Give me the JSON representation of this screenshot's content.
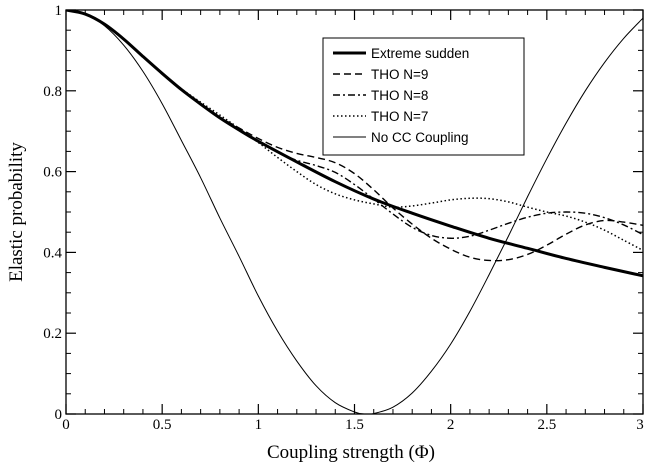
{
  "chart_data": {
    "type": "line",
    "xlabel": "Coupling strength (Φ)",
    "ylabel": "Elastic probability",
    "xlim": [
      0,
      3
    ],
    "ylim": [
      0,
      1
    ],
    "x_ticks": [
      0,
      0.5,
      1,
      1.5,
      2,
      2.5,
      3
    ],
    "x_tick_labels": [
      "0",
      "0.5",
      "1",
      "1.5",
      "2",
      "2.5",
      "3"
    ],
    "x_minor_step": 0.1,
    "y_ticks": [
      0,
      0.2,
      0.4,
      0.6,
      0.8,
      1
    ],
    "y_tick_labels": [
      "0",
      "0.2",
      "0.4",
      "0.6",
      "0.8",
      "1"
    ],
    "y_minor_step": 0.05,
    "grid": false,
    "legend_position": "top-right",
    "series": [
      {
        "name": "Extreme sudden",
        "style": "solid-thick",
        "color": "#000000",
        "x": [
          0,
          0.1,
          0.2,
          0.3,
          0.4,
          0.5,
          0.6,
          0.7,
          0.8,
          0.9,
          1.0,
          1.2,
          1.4,
          1.6,
          1.8,
          2.0,
          2.2,
          2.4,
          2.6,
          2.8,
          3.0
        ],
        "y": [
          1.0,
          0.99,
          0.965,
          0.928,
          0.885,
          0.843,
          0.803,
          0.767,
          0.733,
          0.703,
          0.675,
          0.624,
          0.575,
          0.532,
          0.497,
          0.465,
          0.435,
          0.41,
          0.385,
          0.363,
          0.342
        ]
      },
      {
        "name": "THO N=9",
        "style": "dashed",
        "color": "#000000",
        "x": [
          0,
          0.1,
          0.2,
          0.3,
          0.4,
          0.5,
          0.6,
          0.7,
          0.8,
          0.9,
          1.0,
          1.1,
          1.2,
          1.3,
          1.4,
          1.5,
          1.6,
          1.7,
          1.8,
          1.9,
          2.0,
          2.1,
          2.2,
          2.3,
          2.4,
          2.5,
          2.6,
          2.7,
          2.8,
          2.9,
          3.0
        ],
        "y": [
          1.0,
          0.99,
          0.965,
          0.928,
          0.885,
          0.843,
          0.803,
          0.767,
          0.735,
          0.708,
          0.682,
          0.66,
          0.645,
          0.635,
          0.622,
          0.595,
          0.555,
          0.51,
          0.47,
          0.435,
          0.408,
          0.388,
          0.38,
          0.382,
          0.395,
          0.418,
          0.445,
          0.468,
          0.479,
          0.475,
          0.467
        ]
      },
      {
        "name": "THO N=8",
        "style": "dash-dot",
        "color": "#000000",
        "x": [
          0,
          0.1,
          0.2,
          0.3,
          0.4,
          0.5,
          0.6,
          0.7,
          0.8,
          0.9,
          1.0,
          1.1,
          1.2,
          1.3,
          1.4,
          1.5,
          1.6,
          1.7,
          1.8,
          1.9,
          2.0,
          2.1,
          2.2,
          2.3,
          2.4,
          2.5,
          2.6,
          2.7,
          2.8,
          2.9,
          3.0
        ],
        "y": [
          1.0,
          0.99,
          0.965,
          0.928,
          0.885,
          0.843,
          0.803,
          0.767,
          0.733,
          0.703,
          0.675,
          0.648,
          0.628,
          0.615,
          0.598,
          0.568,
          0.532,
          0.495,
          0.462,
          0.442,
          0.435,
          0.44,
          0.455,
          0.472,
          0.487,
          0.497,
          0.5,
          0.497,
          0.486,
          0.468,
          0.444
        ]
      },
      {
        "name": "THO N=7",
        "style": "dotted",
        "color": "#000000",
        "x": [
          0,
          0.1,
          0.2,
          0.3,
          0.4,
          0.5,
          0.6,
          0.7,
          0.8,
          0.9,
          1.0,
          1.1,
          1.2,
          1.3,
          1.4,
          1.5,
          1.6,
          1.7,
          1.8,
          1.9,
          2.0,
          2.1,
          2.2,
          2.3,
          2.4,
          2.5,
          2.6,
          2.7,
          2.8,
          2.9,
          3.0
        ],
        "y": [
          1.0,
          0.99,
          0.965,
          0.928,
          0.885,
          0.843,
          0.805,
          0.772,
          0.74,
          0.707,
          0.672,
          0.635,
          0.6,
          0.568,
          0.545,
          0.53,
          0.52,
          0.512,
          0.515,
          0.522,
          0.53,
          0.534,
          0.533,
          0.525,
          0.512,
          0.5,
          0.49,
          0.475,
          0.455,
          0.43,
          0.405
        ]
      },
      {
        "name": "No CC Coupling",
        "style": "solid-thin",
        "color": "#000000",
        "x": [
          0,
          0.1,
          0.2,
          0.3,
          0.4,
          0.5,
          0.6,
          0.7,
          0.8,
          0.9,
          1.0,
          1.1,
          1.2,
          1.3,
          1.4,
          1.5,
          1.55,
          1.6,
          1.7,
          1.8,
          1.9,
          2.0,
          2.1,
          2.2,
          2.3,
          2.4,
          2.5,
          2.6,
          2.7,
          2.8,
          2.9,
          3.0
        ],
        "y": [
          1.0,
          0.99,
          0.961,
          0.913,
          0.848,
          0.768,
          0.677,
          0.585,
          0.485,
          0.39,
          0.292,
          0.205,
          0.131,
          0.07,
          0.028,
          0.005,
          0.0,
          0.001,
          0.017,
          0.052,
          0.106,
          0.173,
          0.254,
          0.345,
          0.44,
          0.538,
          0.632,
          0.72,
          0.8,
          0.87,
          0.93,
          0.98
        ]
      }
    ]
  }
}
